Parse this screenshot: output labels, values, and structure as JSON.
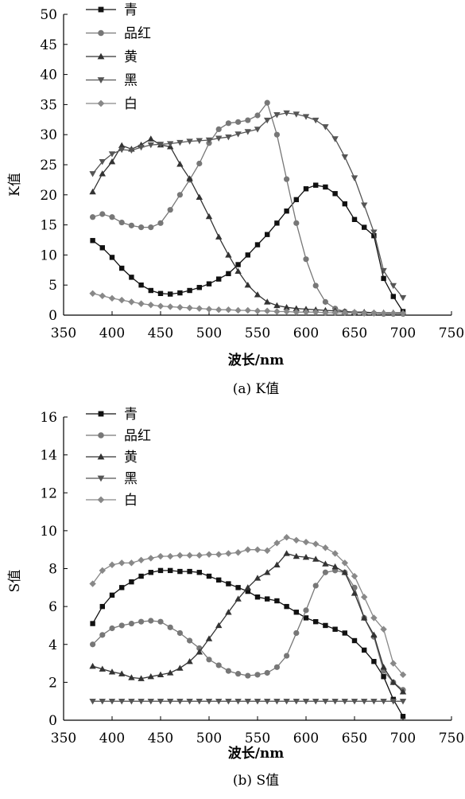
{
  "chart_data": [
    {
      "type": "line",
      "caption": "(a) K值",
      "xlabel": "波长/nm",
      "ylabel": "K值",
      "xlim": [
        350,
        750
      ],
      "ylim": [
        0,
        50
      ],
      "xticks": [
        350,
        400,
        450,
        500,
        550,
        600,
        650,
        700,
        750
      ],
      "yticks": [
        0,
        5,
        10,
        15,
        20,
        25,
        30,
        35,
        40,
        45,
        50
      ],
      "legend_position": "top-left",
      "grid": false,
      "x": [
        380,
        390,
        400,
        410,
        420,
        430,
        440,
        450,
        460,
        470,
        480,
        490,
        500,
        510,
        520,
        530,
        540,
        550,
        560,
        570,
        580,
        590,
        600,
        610,
        620,
        630,
        640,
        650,
        660,
        670,
        680,
        690,
        700
      ],
      "series": [
        {
          "name": "青",
          "marker": "square",
          "color": "#111111",
          "values": [
            12.4,
            11.2,
            9.6,
            7.8,
            6.3,
            5.0,
            4.1,
            3.6,
            3.5,
            3.7,
            4.1,
            4.6,
            5.2,
            6.0,
            6.9,
            8.4,
            10.0,
            11.7,
            13.4,
            15.3,
            17.3,
            19.2,
            21.0,
            21.6,
            21.3,
            20.2,
            18.5,
            15.9,
            14.6,
            13.2,
            6.1,
            3.1,
            0.6
          ]
        },
        {
          "name": "品红",
          "marker": "circle",
          "color": "#777777",
          "values": [
            16.3,
            16.8,
            16.3,
            15.4,
            14.9,
            14.6,
            14.6,
            15.3,
            17.5,
            20.0,
            22.5,
            25.2,
            28.6,
            30.9,
            31.9,
            32.1,
            32.4,
            33.2,
            35.3,
            30.0,
            22.6,
            15.3,
            9.3,
            4.9,
            2.2,
            1.1,
            0.6,
            0.4,
            0.3,
            0.3,
            0.2,
            0.2,
            0.2
          ]
        },
        {
          "name": "黄",
          "marker": "triangle-up",
          "color": "#333333",
          "values": [
            20.5,
            23.5,
            25.5,
            28.2,
            27.6,
            28.3,
            29.3,
            28.3,
            28.0,
            25.1,
            22.7,
            19.6,
            16.4,
            13.0,
            10.0,
            7.3,
            5.0,
            3.4,
            2.2,
            1.6,
            1.3,
            1.1,
            1.0,
            0.9,
            0.8,
            0.7,
            0.6,
            0.5,
            0.5,
            0.4,
            0.4,
            0.4,
            0.4
          ]
        },
        {
          "name": "黑",
          "marker": "triangle-down",
          "color": "#555555",
          "values": [
            23.5,
            25.5,
            26.8,
            27.5,
            27.4,
            27.9,
            28.3,
            28.4,
            28.5,
            28.7,
            28.9,
            29.0,
            29.1,
            29.4,
            29.6,
            30.1,
            30.5,
            30.9,
            32.4,
            33.3,
            33.6,
            33.4,
            33.0,
            32.4,
            31.3,
            29.3,
            26.3,
            22.8,
            18.3,
            13.8,
            7.4,
            4.9,
            2.9
          ]
        },
        {
          "name": "白",
          "marker": "diamond",
          "color": "#888888",
          "values": [
            3.6,
            3.2,
            2.8,
            2.5,
            2.2,
            1.9,
            1.7,
            1.5,
            1.4,
            1.3,
            1.2,
            1.1,
            1.0,
            0.9,
            0.9,
            0.8,
            0.8,
            0.7,
            0.7,
            0.6,
            0.6,
            0.5,
            0.5,
            0.5,
            0.4,
            0.4,
            0.4,
            0.4,
            0.3,
            0.3,
            0.3,
            0.3,
            0.3
          ]
        }
      ]
    },
    {
      "type": "line",
      "caption": "(b) S值",
      "xlabel": "波长/nm",
      "ylabel": "S值",
      "xlim": [
        350,
        750
      ],
      "ylim": [
        0,
        16
      ],
      "xticks": [
        350,
        400,
        450,
        500,
        550,
        600,
        650,
        700,
        750
      ],
      "yticks": [
        0,
        2,
        4,
        6,
        8,
        10,
        12,
        14,
        16
      ],
      "legend_position": "top-left",
      "grid": false,
      "x": [
        380,
        390,
        400,
        410,
        420,
        430,
        440,
        450,
        460,
        470,
        480,
        490,
        500,
        510,
        520,
        530,
        540,
        550,
        560,
        570,
        580,
        590,
        600,
        610,
        620,
        630,
        640,
        650,
        660,
        670,
        680,
        690,
        700
      ],
      "series": [
        {
          "name": "青",
          "marker": "square",
          "color": "#111111",
          "values": [
            5.1,
            6.0,
            6.6,
            7.0,
            7.3,
            7.6,
            7.8,
            7.9,
            7.9,
            7.85,
            7.85,
            7.8,
            7.6,
            7.4,
            7.2,
            7.0,
            6.8,
            6.5,
            6.4,
            6.3,
            6.0,
            5.7,
            5.4,
            5.2,
            5.0,
            4.8,
            4.6,
            4.2,
            3.7,
            3.1,
            2.3,
            1.1,
            0.2
          ]
        },
        {
          "name": "品红",
          "marker": "circle",
          "color": "#777777",
          "values": [
            4.0,
            4.5,
            4.85,
            5.0,
            5.1,
            5.2,
            5.25,
            5.2,
            4.9,
            4.6,
            4.2,
            3.8,
            3.2,
            2.9,
            2.6,
            2.45,
            2.35,
            2.4,
            2.5,
            2.8,
            3.4,
            4.6,
            5.8,
            7.1,
            7.8,
            7.9,
            7.8,
            7.0,
            5.4,
            4.4,
            2.6,
            2.0,
            1.6
          ]
        },
        {
          "name": "黄",
          "marker": "triangle-up",
          "color": "#333333",
          "values": [
            2.85,
            2.7,
            2.55,
            2.45,
            2.25,
            2.2,
            2.3,
            2.4,
            2.5,
            2.75,
            3.1,
            3.6,
            4.3,
            5.0,
            5.7,
            6.4,
            7.0,
            7.5,
            7.8,
            8.2,
            8.8,
            8.65,
            8.6,
            8.5,
            8.25,
            8.1,
            7.8,
            6.7,
            5.4,
            4.5,
            2.8,
            2.0,
            1.5
          ]
        },
        {
          "name": "黑",
          "marker": "triangle-down",
          "color": "#555555",
          "values": [
            1.0,
            1.0,
            1.0,
            1.0,
            1.0,
            1.0,
            1.0,
            1.0,
            1.0,
            1.0,
            1.0,
            1.0,
            1.0,
            1.0,
            1.0,
            1.0,
            1.0,
            1.0,
            1.0,
            1.0,
            1.0,
            1.0,
            1.0,
            1.0,
            1.0,
            1.0,
            1.0,
            1.0,
            1.0,
            1.0,
            1.0,
            1.0,
            1.0
          ]
        },
        {
          "name": "白",
          "marker": "diamond",
          "color": "#888888",
          "values": [
            7.2,
            7.9,
            8.2,
            8.3,
            8.3,
            8.45,
            8.55,
            8.65,
            8.65,
            8.7,
            8.7,
            8.7,
            8.75,
            8.75,
            8.8,
            8.85,
            9.0,
            9.0,
            8.95,
            9.35,
            9.65,
            9.5,
            9.4,
            9.3,
            9.1,
            8.8,
            8.3,
            7.6,
            6.5,
            5.4,
            4.8,
            3.0,
            2.4
          ]
        }
      ]
    }
  ]
}
